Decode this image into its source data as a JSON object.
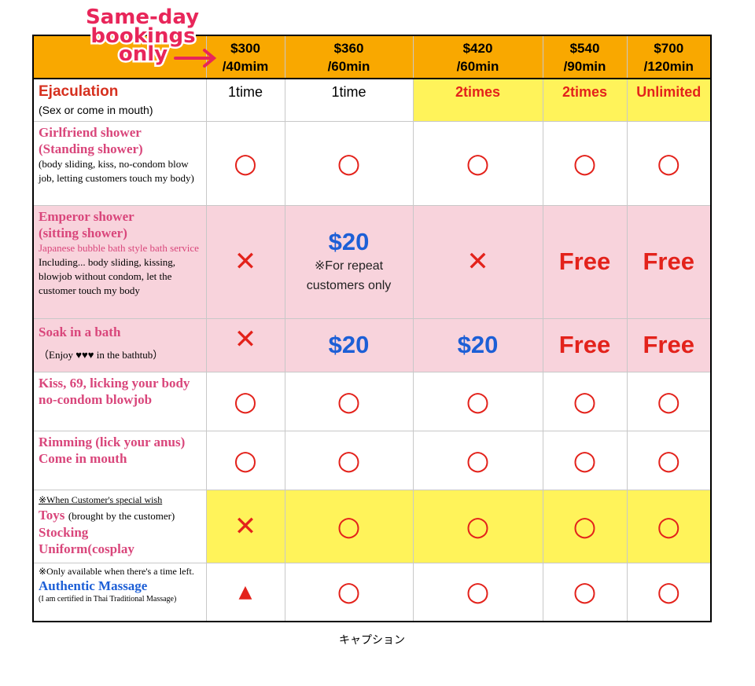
{
  "overlay": {
    "lines": [
      "Same-day",
      "bookings",
      "only"
    ]
  },
  "table": {
    "header": [
      "$300\n/40mim",
      "$360\n/60min",
      "$420\n/60min",
      "$540\n/90min",
      "$700\n/120min"
    ],
    "rows": [
      {
        "label": [
          "Ejaculation",
          "(Sex or come in mouth)"
        ],
        "cells": [
          "1time",
          "1time",
          "2times",
          "2times",
          "Unlimited"
        ]
      },
      {
        "label": [
          "Girlfriend shower",
          "(Standing shower)",
          "(body sliding, kiss, no-condom blow job, letting customers touch my body)"
        ],
        "cells": [
          "○",
          "○",
          "○",
          "○",
          "○"
        ]
      },
      {
        "label": [
          "Emperor shower",
          "(sitting shower)",
          "Japanese bubble bath style bath service",
          "Including... body sliding, kissing, blowjob without condom, let the customer touch my body"
        ],
        "cells": [
          "✕",
          {
            "price": "$20",
            "note": "※For repeat customers only"
          },
          "✕",
          "Free",
          "Free"
        ]
      },
      {
        "label": [
          "Soak in a bath",
          "（Enjoy ♥♥♥ in the bathtub）"
        ],
        "cells": [
          "✕",
          "$20",
          "$20",
          "Free",
          "Free"
        ]
      },
      {
        "label": [
          "Kiss, 69, licking your body",
          "no-condom blowjob"
        ],
        "cells": [
          "○",
          "○",
          "○",
          "○",
          "○"
        ]
      },
      {
        "label": [
          "Rimming (lick your anus)",
          "Come in mouth"
        ],
        "cells": [
          "○",
          "○",
          "○",
          "○",
          "○"
        ]
      },
      {
        "label": [
          "※When Customer's special wish",
          "Toys",
          "(brought by the customer)",
          "Stocking",
          "Uniform(cosplay"
        ],
        "cells": [
          "✕",
          "○",
          "○",
          "○",
          "○"
        ]
      },
      {
        "label": [
          "※Only available when there's  a time left.",
          "Authentic Massage",
          "(I am certified in Thai Traditional Massage)"
        ],
        "cells": [
          "▲",
          "○",
          "○",
          "○",
          "○"
        ]
      }
    ]
  },
  "caption": "キャプション"
}
